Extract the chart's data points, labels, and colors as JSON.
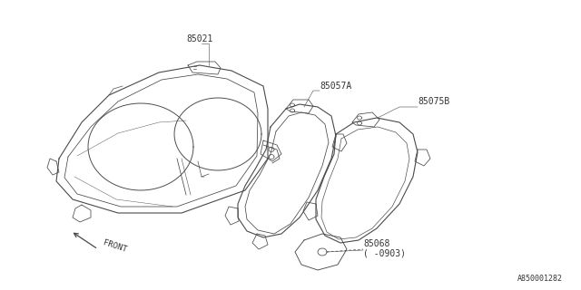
{
  "background_color": "#ffffff",
  "line_color": "#4a4a4a",
  "text_color": "#333333",
  "diagram_ref": "A850001282",
  "label_85021": "85021",
  "label_85057A": "85057A",
  "label_85075B": "85075B",
  "label_85068": "85068",
  "label_0903": "( -0903)",
  "label_front": "FRONT"
}
